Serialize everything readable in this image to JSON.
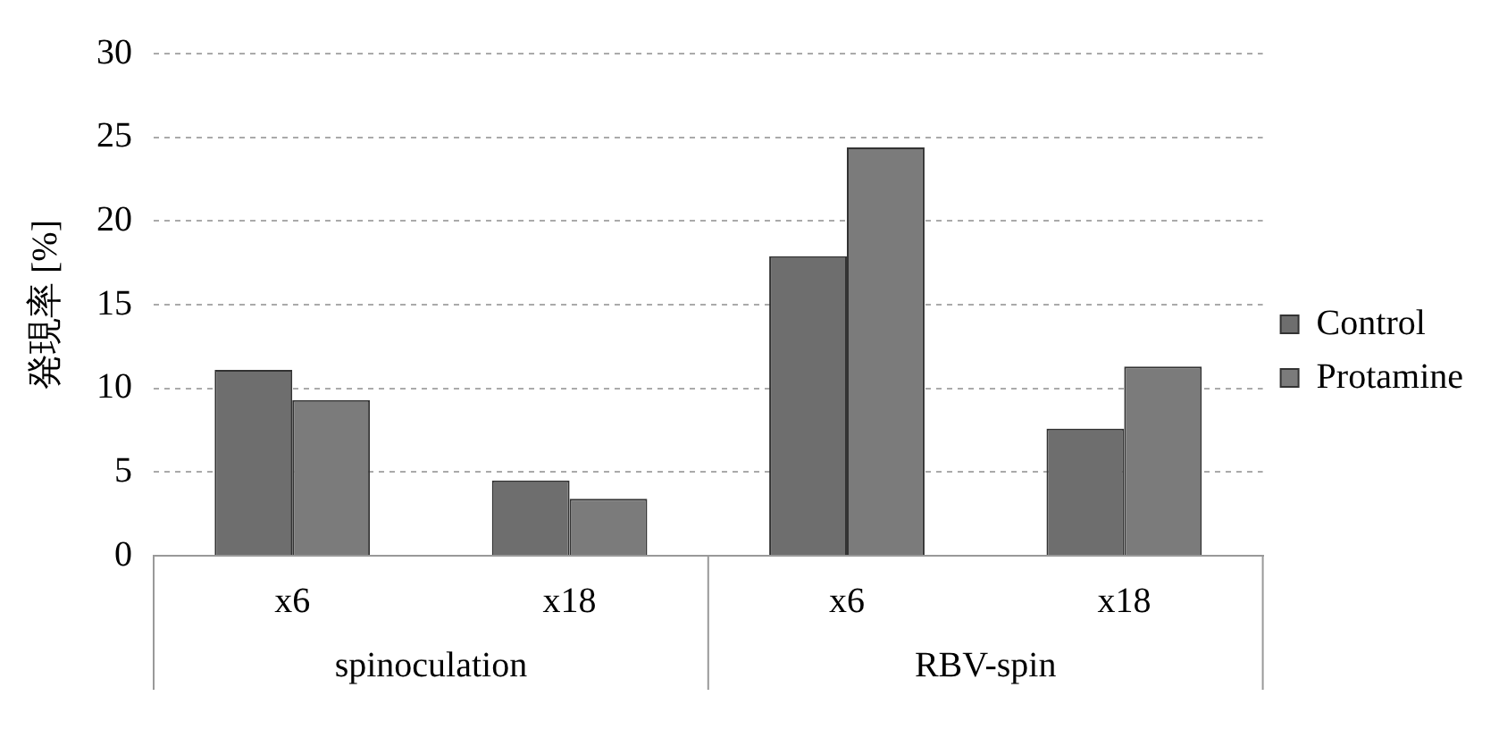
{
  "chart_data": {
    "type": "bar",
    "ylabel": "発現率 [%]",
    "categories": [
      "x6",
      "x18",
      "x6",
      "x18"
    ],
    "series": [
      {
        "name": "Control",
        "color": "#6e6e6e",
        "values": [
          11.1,
          4.5,
          17.9,
          7.6
        ]
      },
      {
        "name": "Protamine",
        "color": "#7b7b7b",
        "values": [
          9.3,
          3.4,
          24.4,
          11.3
        ]
      }
    ],
    "annotations": [
      "spinoculation",
      "RBV-spin"
    ],
    "ylim": [
      0,
      30
    ],
    "yticks": [
      0,
      5,
      10,
      15,
      20,
      25,
      30
    ],
    "grid": "y",
    "legend": "right"
  }
}
